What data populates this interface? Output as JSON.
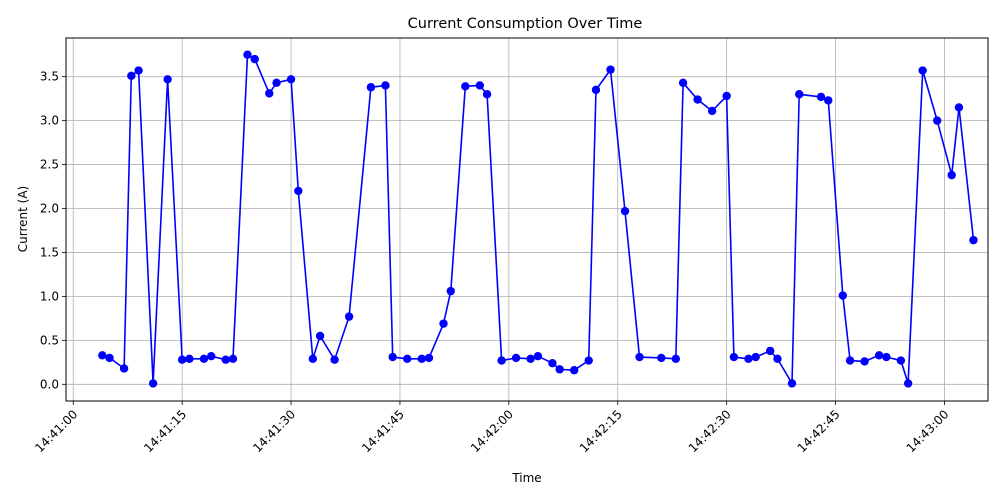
{
  "chart_data": {
    "type": "line",
    "title": "Current Consumption Over Time",
    "xlabel": "Time",
    "ylabel": "Current (A)",
    "x_unit": "time",
    "xlim": [
      "14:40:59",
      "14:43:06"
    ],
    "ylim": [
      -0.19,
      3.94
    ],
    "grid": true,
    "line_color": "#0000ff",
    "marker_color": "#0000ff",
    "x_ticks": [
      "14:41:00",
      "14:41:15",
      "14:41:30",
      "14:41:45",
      "14:42:00",
      "14:42:15",
      "14:42:30",
      "14:42:45",
      "14:43:00"
    ],
    "y_ticks": [
      "0.0",
      "0.5",
      "1.0",
      "1.5",
      "2.0",
      "2.5",
      "3.0",
      "3.5"
    ],
    "series": [
      {
        "x": [
          "14:41:04",
          "14:41:05",
          "14:41:07",
          "14:41:08",
          "14:41:09",
          "14:41:11",
          "14:41:13",
          "14:41:15",
          "14:41:16",
          "14:41:18",
          "14:41:19",
          "14:41:21",
          "14:41:22",
          "14:41:24",
          "14:41:25",
          "14:41:27",
          "14:41:28",
          "14:41:30",
          "14:41:31",
          "14:41:33",
          "14:41:34",
          "14:41:36",
          "14:41:38",
          "14:41:41",
          "14:41:43",
          "14:41:44",
          "14:41:46",
          "14:41:48",
          "14:41:49",
          "14:41:51",
          "14:41:52",
          "14:41:54",
          "14:41:56",
          "14:41:57",
          "14:41:59",
          "14:42:01",
          "14:42:03",
          "14:42:04",
          "14:42:06",
          "14:42:07",
          "14:42:09",
          "14:42:11",
          "14:42:12",
          "14:42:14",
          "14:42:16",
          "14:42:18",
          "14:42:21",
          "14:42:23",
          "14:42:24",
          "14:42:26",
          "14:42:28",
          "14:42:30",
          "14:42:31",
          "14:42:33",
          "14:42:34",
          "14:42:36",
          "14:42:37",
          "14:42:39",
          "14:42:40",
          "14:42:43",
          "14:42:44",
          "14:42:46",
          "14:42:47",
          "14:42:49",
          "14:42:51",
          "14:42:52",
          "14:42:54",
          "14:42:55",
          "14:42:57",
          "14:42:59",
          "14:43:01",
          "14:43:02",
          "14:43:04"
        ],
        "values": [
          0.33,
          0.3,
          0.18,
          3.51,
          3.57,
          0.01,
          3.47,
          0.28,
          0.29,
          0.29,
          0.32,
          0.28,
          0.29,
          3.75,
          3.7,
          3.31,
          3.43,
          3.47,
          2.2,
          0.29,
          0.55,
          0.28,
          0.77,
          3.38,
          3.4,
          0.31,
          0.29,
          0.29,
          0.3,
          0.69,
          1.06,
          3.39,
          3.4,
          3.3,
          0.27,
          0.3,
          0.29,
          0.32,
          0.24,
          0.17,
          0.16,
          0.27,
          3.35,
          3.58,
          1.97,
          0.31,
          0.3,
          0.29,
          3.43,
          3.24,
          3.11,
          3.28,
          0.31,
          0.29,
          0.31,
          0.38,
          0.29,
          0.01,
          3.3,
          3.27,
          3.23,
          1.01,
          0.27,
          0.26,
          0.33,
          0.31,
          0.27,
          0.01,
          3.57,
          3.0,
          2.38,
          3.15,
          1.64
        ]
      }
    ]
  }
}
